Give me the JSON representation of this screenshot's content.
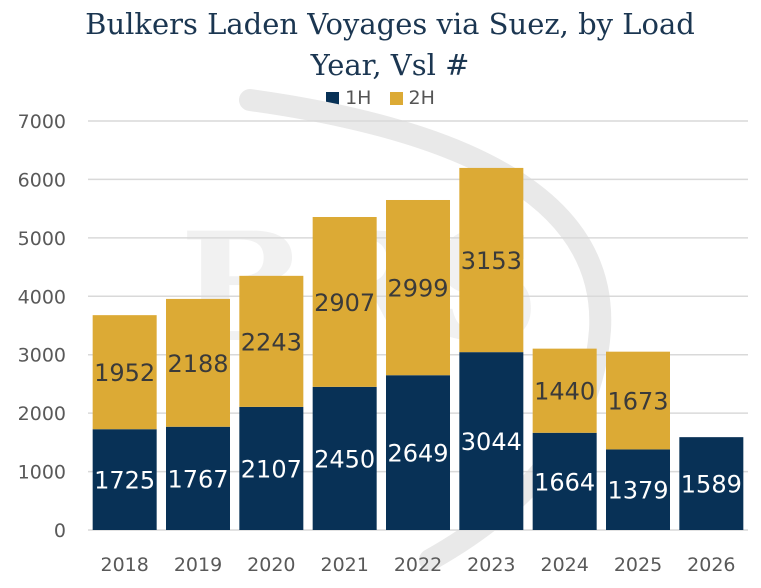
{
  "chart_data": {
    "type": "bar",
    "stacked": true,
    "title": "Bulkers Laden Voyages via Suez, by Load Year, Vsl #",
    "categories": [
      "2018",
      "2019",
      "2020",
      "2021",
      "2022",
      "2023",
      "2024",
      "2025",
      "2026"
    ],
    "series": [
      {
        "name": "1H",
        "color": "#083156",
        "values": [
          1725,
          1767,
          2107,
          2450,
          2649,
          3044,
          1664,
          1379,
          1589
        ]
      },
      {
        "name": "2H",
        "color": "#dcaa35",
        "values": [
          1952,
          2188,
          2243,
          2907,
          2999,
          3153,
          1440,
          1673,
          null
        ]
      }
    ],
    "ylim": [
      0,
      7000
    ],
    "yticks": [
      0,
      1000,
      2000,
      3000,
      4000,
      5000,
      6000,
      7000
    ],
    "grid": true,
    "legend_position": "top",
    "watermark": "BRS"
  }
}
